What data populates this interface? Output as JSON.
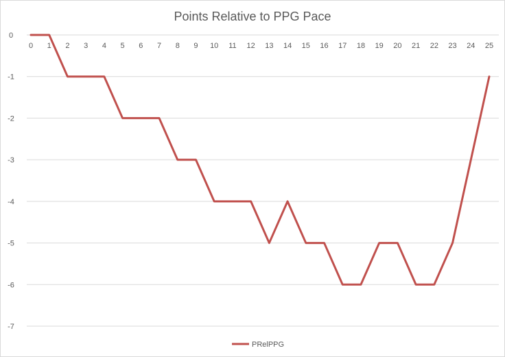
{
  "chart_data": {
    "type": "line",
    "title": "Points Relative to PPG Pace",
    "xlabel": "",
    "ylabel": "",
    "x": [
      0,
      1,
      2,
      3,
      4,
      5,
      6,
      7,
      8,
      9,
      10,
      11,
      12,
      13,
      14,
      15,
      16,
      17,
      18,
      19,
      20,
      21,
      22,
      23,
      24,
      25
    ],
    "ylim": [
      -7,
      0
    ],
    "yticks": [
      0,
      -1,
      -2,
      -3,
      -4,
      -5,
      -6,
      -7
    ],
    "grid": true,
    "legend_position": "bottom",
    "series": [
      {
        "name": "PRelPPG",
        "color": "#c0504d",
        "values": [
          0,
          0,
          -1,
          -1,
          -1,
          -2,
          -2,
          -2,
          -3,
          -3,
          -4,
          -4,
          -4,
          -5,
          -4,
          -5,
          -5,
          -6,
          -6,
          -5,
          -5,
          -6,
          -6,
          -5,
          -3,
          -1
        ]
      }
    ]
  }
}
